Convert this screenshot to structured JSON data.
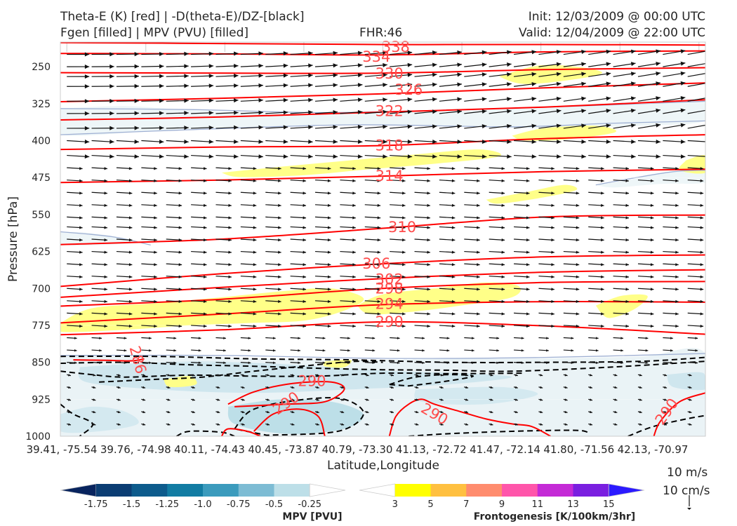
{
  "header": {
    "line1_left": "Theta-E (K) [red] | -D(theta-E)/DZ-[black]",
    "line2_left": "Fgen [filled] | MPV (PVU) [filled]",
    "fhr": "FHR:46",
    "init": "Init: 12/03/2009 @ 00:00 UTC",
    "valid": "Valid: 12/04/2009 @ 22:00 UTC"
  },
  "vector_reference": {
    "label_top": "10 m/s",
    "label_bottom": "10 cm/s"
  },
  "colorbars": {
    "mpv": {
      "label": "MPV [PVU]",
      "ticks": [
        "-1.75",
        "-1.5",
        "-1.25",
        "-1.0",
        "-0.75",
        "-0.5",
        "-0.25"
      ],
      "colors": [
        "#08245e",
        "#0b3d73",
        "#0d5b8c",
        "#127ca3",
        "#3b9bbd",
        "#7dbcd4",
        "#bddfe8",
        "#ffffff"
      ]
    },
    "fgen": {
      "label": "Frontogenesis [K/100km/3hr]",
      "ticks": [
        "3",
        "5",
        "7",
        "9",
        "11",
        "13",
        "15"
      ],
      "colors": [
        "#ffffff",
        "#ffff00",
        "#ffc040",
        "#ff8c6e",
        "#ff55aa",
        "#c42ad6",
        "#7a1fe0",
        "#2b1aff"
      ]
    }
  },
  "chart_data": {
    "type": "cross-section",
    "xlabel": "Latitude,Longitude",
    "ylabel": "Pressure [hPa]",
    "x_ticks": [
      "39.41, -75.54",
      "39.76, -74.98",
      "40.11, -74.43",
      "40.45, -73.87",
      "40.79, -73.30",
      "41.13, -72.72",
      "41.47, -72.14",
      "41.80, -71.56",
      "42.13, -70.97"
    ],
    "y_ticks": [
      250,
      325,
      400,
      475,
      550,
      625,
      700,
      775,
      850,
      925,
      1000
    ],
    "ylim": [
      1000,
      200
    ],
    "y_scale": "linear (inverted)",
    "theta_e_contours": {
      "color": "#ff0000",
      "levels": [
        286,
        290,
        294,
        298,
        302,
        306,
        310,
        314,
        318,
        322,
        326,
        330,
        334,
        338
      ],
      "labels": [
        {
          "text": "338",
          "x": 0.52,
          "p": 210
        },
        {
          "text": "334",
          "x": 0.49,
          "p": 230
        },
        {
          "text": "330",
          "x": 0.51,
          "p": 264
        },
        {
          "text": "326",
          "x": 0.54,
          "p": 297
        },
        {
          "text": "322",
          "x": 0.51,
          "p": 340
        },
        {
          "text": "318",
          "x": 0.51,
          "p": 410
        },
        {
          "text": "314",
          "x": 0.51,
          "p": 472
        },
        {
          "text": "310",
          "x": 0.53,
          "p": 576
        },
        {
          "text": "306",
          "x": 0.49,
          "p": 650
        },
        {
          "text": "302",
          "x": 0.51,
          "p": 682
        },
        {
          "text": "298",
          "x": 0.51,
          "p": 700
        },
        {
          "text": "294",
          "x": 0.51,
          "p": 732
        },
        {
          "text": "290",
          "x": 0.51,
          "p": 768
        },
        {
          "text": "286",
          "x": 0.12,
          "p": 845
        },
        {
          "text": "290",
          "x": 0.39,
          "p": 888
        },
        {
          "text": "290",
          "x": 0.35,
          "p": 933
        },
        {
          "text": "290",
          "x": 0.58,
          "p": 955
        },
        {
          "text": "290",
          "x": 0.94,
          "p": 950
        }
      ],
      "lines": [
        {
          "level": 338,
          "x": [
            0,
            0.25,
            0.5,
            0.75,
            1
          ],
          "p": [
            201,
            203,
            205,
            205,
            206
          ]
        },
        {
          "level": 334,
          "x": [
            0,
            0.25,
            0.5,
            0.75,
            1
          ],
          "p": [
            223,
            224,
            226,
            220,
            218
          ]
        },
        {
          "level": 330,
          "x": [
            0,
            0.25,
            0.5,
            0.75,
            1
          ],
          "p": [
            262,
            263,
            263,
            256,
            252
          ]
        },
        {
          "level": 326,
          "x": [
            0,
            0.25,
            0.5,
            0.75,
            1
          ],
          "p": [
            321,
            314,
            305,
            293,
            283
          ]
        },
        {
          "level": 322,
          "x": [
            0,
            0.25,
            0.5,
            0.75,
            1
          ],
          "p": [
            358,
            352,
            342,
            332,
            317
          ]
        },
        {
          "level": 318,
          "x": [
            0,
            0.25,
            0.5,
            0.75,
            1
          ],
          "p": [
            418,
            413,
            410,
            396,
            388
          ]
        },
        {
          "level": 314,
          "x": [
            0,
            0.25,
            0.5,
            0.75,
            1
          ],
          "p": [
            485,
            480,
            472,
            463,
            458
          ]
        },
        {
          "level": 310,
          "x": [
            0,
            0.25,
            0.5,
            0.75,
            1
          ],
          "p": [
            611,
            600,
            578,
            555,
            551
          ]
        },
        {
          "level": 306,
          "x": [
            0,
            0.25,
            0.5,
            0.75,
            1
          ],
          "p": [
            696,
            670,
            650,
            636,
            632
          ]
        },
        {
          "level": 302,
          "x": [
            0,
            0.25,
            0.5,
            0.75,
            1
          ],
          "p": [
            718,
            698,
            680,
            667,
            662
          ]
        },
        {
          "level": 298,
          "x": [
            0,
            0.25,
            0.5,
            0.75,
            1
          ],
          "p": [
            736,
            722,
            700,
            688,
            686
          ]
        },
        {
          "level": 294,
          "x": [
            0,
            0.25,
            0.5,
            0.75,
            1
          ],
          "p": [
            770,
            752,
            733,
            727,
            728
          ]
        },
        {
          "level": 290,
          "x": [
            0,
            0.25,
            0.5,
            0.75,
            1
          ],
          "p": [
            794,
            784,
            768,
            776,
            793
          ]
        }
      ]
    },
    "wind_vectors": {
      "color": "#111111",
      "direction": "eastward, nearly horizontal; stronger aloft, weak near surface"
    },
    "ddz_theta_e_contours": {
      "color": "#000000",
      "style": "dashed",
      "region": "below 850 hPa"
    },
    "mpv_fill": {
      "color": "#cfe6ee",
      "region": "below 850 hPa and thin layers near 325-400 hPa"
    },
    "fgen_fill": {
      "color": "#ffff88",
      "regions": [
        "~775-700 hPa west half",
        "~700-775 hPa center",
        "~250-300 hPa east",
        "~390-460 hPa center",
        "~500 hPa east"
      ]
    }
  }
}
